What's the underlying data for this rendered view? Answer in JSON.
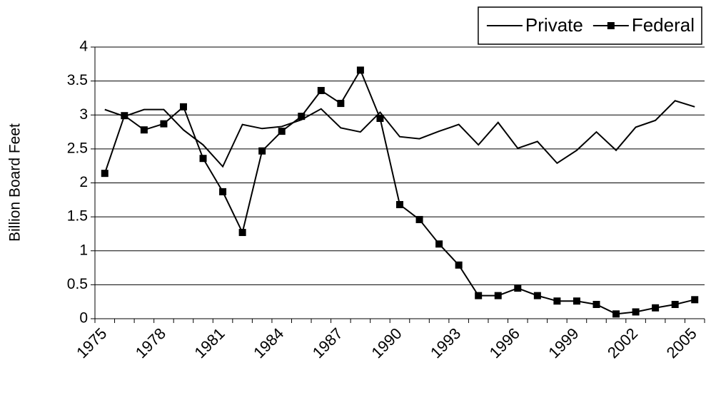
{
  "chart_data": {
    "type": "line",
    "y_label": "Billion Board Feet",
    "categories": [
      "1975",
      null,
      null,
      "1978",
      null,
      null,
      "1981",
      null,
      null,
      "1984",
      null,
      null,
      "1987",
      null,
      null,
      "1990",
      null,
      null,
      "1993",
      null,
      null,
      "1996",
      null,
      null,
      "1999",
      null,
      null,
      "2002",
      null,
      null,
      "2005"
    ],
    "series": [
      {
        "name": "Private",
        "color": "#000000",
        "marker": "none",
        "values": [
          3.08,
          2.98,
          3.08,
          3.08,
          2.78,
          2.56,
          2.24,
          2.86,
          2.8,
          2.83,
          2.93,
          3.09,
          2.81,
          2.75,
          3.04,
          2.68,
          2.65,
          2.76,
          2.86,
          2.56,
          2.89,
          2.51,
          2.61,
          2.29,
          2.48,
          2.75,
          2.48,
          2.82,
          2.92,
          3.21,
          3.12
        ]
      },
      {
        "name": "Federal",
        "color": "#000000",
        "marker": "square",
        "values": [
          2.14,
          2.99,
          2.78,
          2.87,
          3.12,
          2.36,
          1.87,
          1.27,
          2.47,
          2.76,
          2.98,
          3.36,
          3.17,
          3.66,
          2.95,
          1.68,
          1.46,
          1.1,
          0.79,
          0.34,
          0.34,
          0.45,
          0.34,
          0.26,
          0.26,
          0.21,
          0.07,
          0.1,
          0.16,
          0.21,
          0.28
        ]
      }
    ],
    "ylim": [
      0,
      4
    ],
    "yticks": [
      0,
      0.5,
      1,
      1.5,
      2,
      2.5,
      3,
      3.5,
      4
    ],
    "grid": true,
    "legend": "top-right"
  }
}
